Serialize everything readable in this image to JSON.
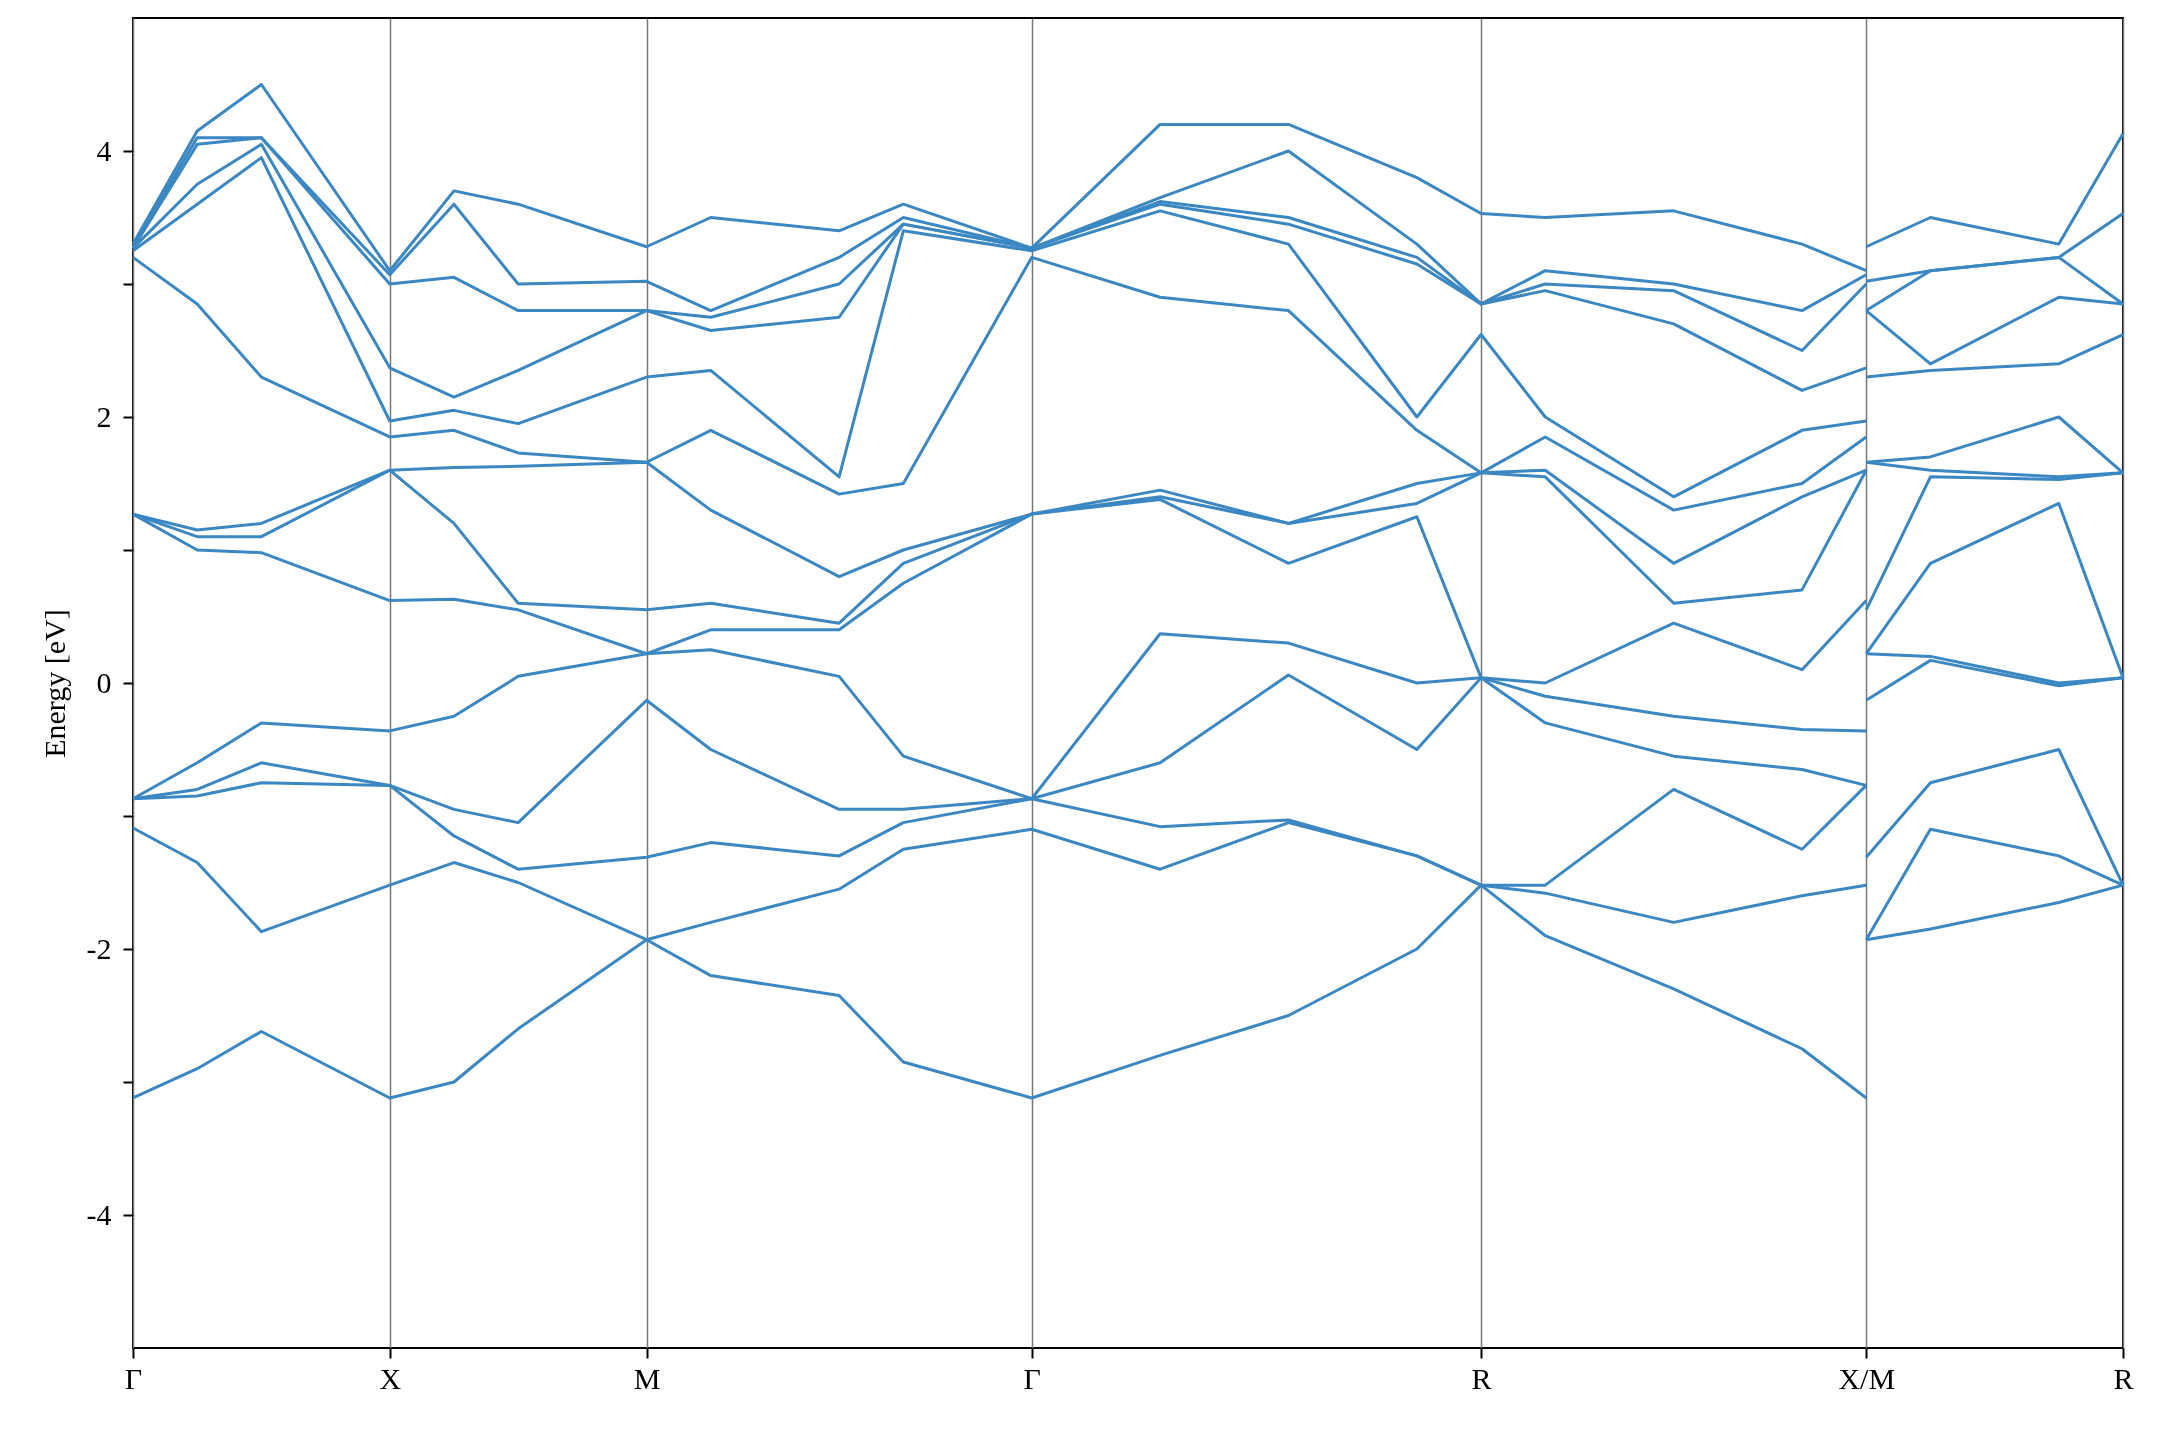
{
  "chart_data": {
    "type": "line",
    "ylabel": "Energy [eV]",
    "categories": [
      "Γ",
      null,
      null,
      null,
      "X",
      null,
      null,
      null,
      "M",
      null,
      null,
      null,
      null,
      null,
      "Γ",
      null,
      null,
      null,
      null,
      null,
      null,
      "R",
      null,
      null,
      null,
      null,
      null,
      "X/M",
      null,
      null,
      null,
      "R"
    ],
    "series": [
      {
        "color": "#3b87c2",
        "values": [
          -3.12,
          -2.9,
          -2.62,
          null,
          -3.12,
          -3.0,
          -2.6,
          null,
          -1.93,
          -2.2,
          null,
          -2.35,
          -2.85,
          null,
          -3.12,
          null,
          -2.8,
          null,
          -2.5,
          null,
          -2.0,
          -1.52,
          -1.9,
          null,
          -2.3,
          null,
          -2.75,
          -3.12,
          null,
          null,
          null,
          null
        ]
      },
      {
        "color": "#3b87c2",
        "values": [
          null,
          null,
          null,
          null,
          null,
          null,
          null,
          null,
          null,
          null,
          null,
          null,
          null,
          null,
          null,
          null,
          null,
          null,
          null,
          null,
          null,
          null,
          null,
          null,
          null,
          null,
          null,
          -1.93,
          -1.85,
          null,
          -1.65,
          -1.52
        ]
      },
      {
        "color": "#3b87c2",
        "values": [
          -1.09,
          -1.35,
          -1.87,
          null,
          -1.52,
          -1.35,
          -1.5,
          null,
          -1.93,
          -1.8,
          null,
          -1.55,
          -1.25,
          null,
          -1.1,
          null,
          -1.4,
          null,
          -1.05,
          null,
          -1.3,
          -1.52,
          -1.58,
          null,
          -1.8,
          null,
          -1.6,
          -1.52,
          null,
          null,
          null,
          null
        ]
      },
      {
        "color": "#3b87c2",
        "values": [
          null,
          null,
          null,
          null,
          null,
          null,
          null,
          null,
          null,
          null,
          null,
          null,
          null,
          null,
          null,
          null,
          null,
          null,
          null,
          null,
          null,
          null,
          null,
          null,
          null,
          null,
          null,
          -1.93,
          -1.1,
          null,
          -1.3,
          -1.52
        ]
      },
      {
        "color": "#3b87c2",
        "values": [
          -0.87,
          -0.85,
          -0.75,
          null,
          -0.77,
          -1.15,
          -1.4,
          null,
          -1.31,
          -1.2,
          null,
          -1.3,
          -1.05,
          null,
          -0.87,
          null,
          -1.08,
          null,
          -1.03,
          null,
          -1.3,
          -1.52,
          -1.52,
          null,
          -0.8,
          null,
          -1.25,
          -0.77,
          null,
          null,
          null,
          null
        ]
      },
      {
        "color": "#3b87c2",
        "values": [
          null,
          null,
          null,
          null,
          null,
          null,
          null,
          null,
          null,
          null,
          null,
          null,
          null,
          null,
          null,
          null,
          null,
          null,
          null,
          null,
          null,
          null,
          null,
          null,
          null,
          null,
          null,
          -1.31,
          -0.75,
          null,
          -0.5,
          -1.52
        ]
      },
      {
        "color": "#3b87c2",
        "values": [
          -0.87,
          -0.8,
          -0.6,
          null,
          -0.77,
          -0.95,
          -1.05,
          null,
          -0.13,
          -0.5,
          null,
          -0.95,
          -0.95,
          null,
          -0.87,
          null,
          -0.6,
          null,
          0.06,
          null,
          -0.5,
          0.04,
          -0.3,
          null,
          -0.55,
          null,
          -0.65,
          -0.77,
          null,
          null,
          null,
          null
        ]
      },
      {
        "color": "#3b87c2",
        "values": [
          null,
          null,
          null,
          null,
          null,
          null,
          null,
          null,
          null,
          null,
          null,
          null,
          null,
          null,
          null,
          null,
          null,
          null,
          null,
          null,
          null,
          null,
          null,
          null,
          null,
          null,
          null,
          -0.13,
          0.17,
          null,
          -0.02,
          0.04
        ]
      },
      {
        "color": "#3b87c2",
        "values": [
          -0.87,
          -0.6,
          -0.3,
          null,
          -0.36,
          -0.25,
          0.05,
          null,
          0.22,
          0.25,
          null,
          0.05,
          -0.55,
          null,
          -0.87,
          null,
          0.37,
          null,
          0.3,
          null,
          0.0,
          0.04,
          -0.1,
          null,
          -0.25,
          null,
          -0.35,
          -0.36,
          null,
          null,
          null,
          null
        ]
      },
      {
        "color": "#3b87c2",
        "values": [
          null,
          null,
          null,
          null,
          null,
          null,
          null,
          null,
          null,
          null,
          null,
          null,
          null,
          null,
          null,
          null,
          null,
          null,
          null,
          null,
          null,
          null,
          null,
          null,
          null,
          null,
          null,
          0.22,
          0.2,
          null,
          0.0,
          0.04
        ]
      },
      {
        "color": "#3b87c2",
        "values": [
          1.27,
          1.0,
          0.98,
          null,
          0.62,
          0.63,
          0.55,
          null,
          0.22,
          0.4,
          null,
          0.4,
          0.75,
          null,
          1.27,
          null,
          1.38,
          null,
          0.9,
          null,
          1.25,
          0.04,
          0.0,
          null,
          0.45,
          null,
          0.1,
          0.62,
          null,
          null,
          null,
          null
        ]
      },
      {
        "color": "#3b87c2",
        "values": [
          null,
          null,
          null,
          null,
          null,
          null,
          null,
          null,
          null,
          null,
          null,
          null,
          null,
          null,
          null,
          null,
          null,
          null,
          null,
          null,
          null,
          null,
          null,
          null,
          null,
          null,
          null,
          0.22,
          0.9,
          null,
          1.35,
          0.04
        ]
      },
      {
        "color": "#3b87c2",
        "values": [
          1.27,
          1.1,
          1.1,
          null,
          1.6,
          1.2,
          0.6,
          null,
          0.55,
          0.6,
          null,
          0.45,
          0.9,
          null,
          1.27,
          null,
          1.4,
          null,
          1.2,
          null,
          1.35,
          1.58,
          1.55,
          null,
          0.6,
          null,
          0.7,
          1.6,
          null,
          null,
          null,
          null
        ]
      },
      {
        "color": "#3b87c2",
        "values": [
          null,
          null,
          null,
          null,
          null,
          null,
          null,
          null,
          null,
          null,
          null,
          null,
          null,
          null,
          null,
          null,
          null,
          null,
          null,
          null,
          null,
          null,
          null,
          null,
          null,
          null,
          null,
          0.55,
          1.55,
          null,
          1.53,
          1.58
        ]
      },
      {
        "color": "#3b87c2",
        "values": [
          1.27,
          1.15,
          1.2,
          null,
          1.6,
          1.62,
          1.63,
          null,
          1.66,
          1.3,
          null,
          0.8,
          1.0,
          null,
          1.27,
          null,
          1.45,
          null,
          1.2,
          null,
          1.5,
          1.58,
          1.6,
          null,
          0.9,
          null,
          1.4,
          1.6,
          null,
          null,
          null,
          null
        ]
      },
      {
        "color": "#3b87c2",
        "values": [
          null,
          null,
          null,
          null,
          null,
          null,
          null,
          null,
          null,
          null,
          null,
          null,
          null,
          null,
          null,
          null,
          null,
          null,
          null,
          null,
          null,
          null,
          null,
          null,
          null,
          null,
          null,
          1.66,
          1.6,
          null,
          1.55,
          1.58
        ]
      },
      {
        "color": "#3b87c2",
        "values": [
          3.2,
          2.85,
          2.3,
          null,
          1.85,
          1.9,
          1.73,
          null,
          1.66,
          1.9,
          null,
          1.42,
          1.5,
          null,
          3.2,
          null,
          2.9,
          null,
          2.8,
          null,
          1.9,
          1.58,
          1.85,
          null,
          1.3,
          null,
          1.5,
          1.85,
          null,
          null,
          null,
          null
        ]
      },
      {
        "color": "#3b87c2",
        "values": [
          null,
          null,
          null,
          null,
          null,
          null,
          null,
          null,
          null,
          null,
          null,
          null,
          null,
          null,
          null,
          null,
          null,
          null,
          null,
          null,
          null,
          null,
          null,
          null,
          null,
          null,
          null,
          1.66,
          1.7,
          null,
          2.0,
          1.58
        ]
      },
      {
        "color": "#3b87c2",
        "values": [
          3.25,
          3.6,
          3.95,
          null,
          1.97,
          2.05,
          1.95,
          null,
          2.3,
          2.35,
          null,
          1.55,
          3.4,
          null,
          3.25,
          null,
          3.55,
          null,
          3.3,
          null,
          2.0,
          2.62,
          2.0,
          null,
          1.4,
          null,
          1.9,
          1.97,
          null,
          null,
          null,
          null
        ]
      },
      {
        "color": "#3b87c2",
        "values": [
          null,
          null,
          null,
          null,
          null,
          null,
          null,
          null,
          null,
          null,
          null,
          null,
          null,
          null,
          null,
          null,
          null,
          null,
          null,
          null,
          null,
          null,
          null,
          null,
          null,
          null,
          null,
          2.3,
          2.35,
          null,
          2.4,
          2.62
        ]
      },
      {
        "color": "#3b87c2",
        "values": [
          3.27,
          3.75,
          4.05,
          null,
          2.37,
          2.15,
          2.35,
          null,
          2.8,
          2.65,
          null,
          2.75,
          3.45,
          null,
          3.27,
          null,
          3.6,
          null,
          3.45,
          null,
          3.15,
          2.85,
          2.95,
          null,
          2.7,
          null,
          2.2,
          2.37,
          null,
          null,
          null,
          null
        ]
      },
      {
        "color": "#3b87c2",
        "values": [
          null,
          null,
          null,
          null,
          null,
          null,
          null,
          null,
          null,
          null,
          null,
          null,
          null,
          null,
          null,
          null,
          null,
          null,
          null,
          null,
          null,
          null,
          null,
          null,
          null,
          null,
          null,
          2.8,
          2.4,
          null,
          2.9,
          2.85
        ]
      },
      {
        "color": "#3b87c2",
        "values": [
          3.27,
          4.05,
          4.1,
          null,
          3.0,
          3.05,
          2.8,
          null,
          2.8,
          2.75,
          null,
          3.0,
          3.45,
          null,
          3.27,
          null,
          3.62,
          null,
          3.5,
          null,
          3.2,
          2.85,
          3.0,
          null,
          2.95,
          null,
          2.5,
          3.0,
          null,
          null,
          null,
          null
        ]
      },
      {
        "color": "#3b87c2",
        "values": [
          null,
          null,
          null,
          null,
          null,
          null,
          null,
          null,
          null,
          null,
          null,
          null,
          null,
          null,
          null,
          null,
          null,
          null,
          null,
          null,
          null,
          null,
          null,
          null,
          null,
          null,
          null,
          2.8,
          3.1,
          null,
          3.2,
          2.85
        ]
      },
      {
        "color": "#3b87c2",
        "values": [
          3.28,
          4.1,
          4.1,
          null,
          3.07,
          3.6,
          3.0,
          null,
          3.02,
          2.8,
          null,
          3.2,
          3.5,
          null,
          3.27,
          null,
          3.65,
          null,
          4.0,
          null,
          3.3,
          2.85,
          3.1,
          null,
          3.0,
          null,
          2.8,
          3.07,
          null,
          null,
          null,
          null
        ]
      },
      {
        "color": "#3b87c2",
        "values": [
          null,
          null,
          null,
          null,
          null,
          null,
          null,
          null,
          null,
          null,
          null,
          null,
          null,
          null,
          null,
          null,
          null,
          null,
          null,
          null,
          null,
          null,
          null,
          null,
          null,
          null,
          null,
          3.02,
          3.1,
          null,
          3.2,
          3.53
        ]
      },
      {
        "color": "#3b87c2",
        "values": [
          3.3,
          4.15,
          4.5,
          null,
          3.1,
          3.7,
          3.6,
          null,
          3.28,
          3.5,
          null,
          3.4,
          3.6,
          null,
          3.27,
          null,
          4.2,
          null,
          4.2,
          null,
          3.8,
          3.53,
          3.5,
          null,
          3.55,
          null,
          3.3,
          3.1,
          null,
          null,
          null,
          null
        ]
      },
      {
        "color": "#3b87c2",
        "values": [
          null,
          null,
          null,
          null,
          null,
          null,
          null,
          null,
          null,
          null,
          null,
          null,
          null,
          null,
          null,
          null,
          null,
          null,
          null,
          null,
          null,
          null,
          null,
          null,
          null,
          null,
          null,
          3.28,
          3.5,
          null,
          3.3,
          4.13
        ]
      }
    ],
    "ylim": [
      -5,
      5
    ],
    "yticks": [
      -4,
      {
        "value": -3,
        "label": null
      },
      -2,
      {
        "value": -1,
        "label": null
      },
      0,
      {
        "value": 1,
        "label": null
      },
      2,
      {
        "value": 3,
        "label": null
      },
      4
    ],
    "grid": "x",
    "legend": false,
    "line_style": "solid",
    "marker": "none"
  }
}
